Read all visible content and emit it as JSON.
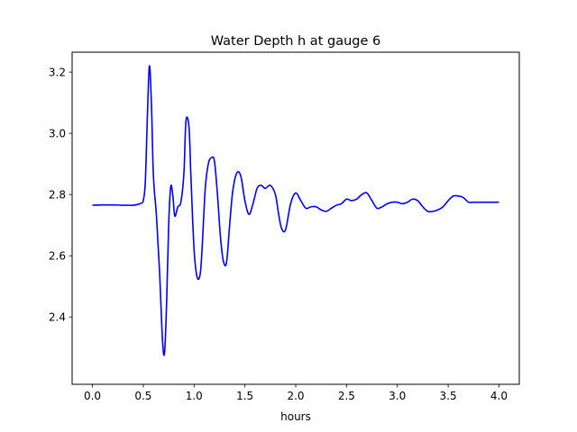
{
  "chart_data": {
    "type": "line",
    "title": "Water Depth h at gauge 6",
    "xlabel": "hours",
    "ylabel": "",
    "xlim": [
      -0.2,
      4.2
    ],
    "ylim": [
      2.18,
      3.265
    ],
    "xticks": [
      0.0,
      0.5,
      1.0,
      1.5,
      2.0,
      2.5,
      3.0,
      3.5,
      4.0
    ],
    "xtick_labels": [
      "0.0",
      "0.5",
      "1.0",
      "1.5",
      "2.0",
      "2.5",
      "3.0",
      "3.5",
      "4.0"
    ],
    "yticks": [
      2.4,
      2.6,
      2.8,
      3.0,
      3.2
    ],
    "ytick_labels": [
      "2.4",
      "2.6",
      "2.8",
      "3.0",
      "3.2"
    ],
    "grid": false,
    "series": [
      {
        "color": "#0000ff",
        "x": [
          0.0,
          0.1,
          0.2,
          0.3,
          0.4,
          0.45,
          0.48,
          0.5,
          0.52,
          0.54,
          0.56,
          0.58,
          0.6,
          0.63,
          0.66,
          0.69,
          0.71,
          0.73,
          0.75,
          0.77,
          0.79,
          0.81,
          0.84,
          0.87,
          0.9,
          0.92,
          0.95,
          0.97,
          1.0,
          1.03,
          1.06,
          1.08,
          1.11,
          1.14,
          1.17,
          1.2,
          1.23,
          1.26,
          1.29,
          1.32,
          1.35,
          1.38,
          1.42,
          1.46,
          1.5,
          1.54,
          1.58,
          1.62,
          1.66,
          1.7,
          1.75,
          1.8,
          1.83,
          1.86,
          1.9,
          1.95,
          2.0,
          2.05,
          2.1,
          2.15,
          2.2,
          2.25,
          2.3,
          2.35,
          2.4,
          2.45,
          2.5,
          2.55,
          2.6,
          2.65,
          2.7,
          2.75,
          2.8,
          2.85,
          2.9,
          2.95,
          3.0,
          3.05,
          3.1,
          3.15,
          3.2,
          3.25,
          3.3,
          3.35,
          3.4,
          3.45,
          3.5,
          3.55,
          3.6,
          3.65,
          3.7,
          3.75,
          3.8,
          3.85,
          3.9,
          3.95,
          4.0
        ],
        "y": [
          2.765,
          2.766,
          2.766,
          2.765,
          2.765,
          2.768,
          2.772,
          2.78,
          2.84,
          3.05,
          3.22,
          3.1,
          2.86,
          2.73,
          2.55,
          2.32,
          2.285,
          2.45,
          2.7,
          2.825,
          2.8,
          2.73,
          2.76,
          2.775,
          2.87,
          3.04,
          3.02,
          2.85,
          2.62,
          2.53,
          2.54,
          2.63,
          2.82,
          2.9,
          2.92,
          2.91,
          2.8,
          2.66,
          2.58,
          2.58,
          2.7,
          2.81,
          2.87,
          2.86,
          2.78,
          2.735,
          2.77,
          2.82,
          2.83,
          2.82,
          2.83,
          2.8,
          2.74,
          2.69,
          2.685,
          2.77,
          2.805,
          2.78,
          2.755,
          2.76,
          2.76,
          2.75,
          2.745,
          2.755,
          2.765,
          2.77,
          2.785,
          2.78,
          2.785,
          2.8,
          2.805,
          2.78,
          2.755,
          2.76,
          2.77,
          2.775,
          2.775,
          2.77,
          2.775,
          2.785,
          2.78,
          2.76,
          2.745,
          2.745,
          2.75,
          2.76,
          2.78,
          2.795,
          2.795,
          2.79,
          2.775,
          2.775,
          2.775,
          2.775,
          2.775,
          2.775,
          2.775
        ]
      }
    ]
  }
}
